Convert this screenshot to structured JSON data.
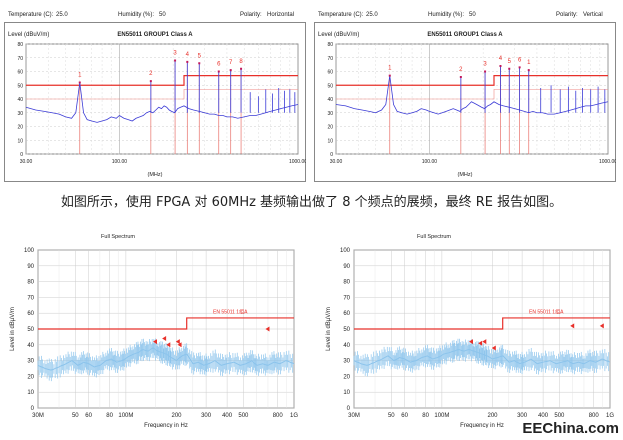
{
  "top_panels": [
    {
      "temperature_label": "Temperature (C):",
      "temperature_value": "25.0",
      "humidity_label": "Humidity (%):",
      "humidity_value": "50",
      "polarity_label": "Polarity:",
      "polarity_value": "Horizontal"
    },
    {
      "temperature_label": "Temperature (C):",
      "temperature_value": "25.0",
      "humidity_label": "Humidity (%):",
      "humidity_value": "50",
      "polarity_label": "Polarity:",
      "polarity_value": "Vertical"
    }
  ],
  "caption": "如图所示，使用 FPGA 对 60MHz 基频输出做了 8 个频点的展频，最终 RE 报告如图。",
  "watermark": "EEChina.com",
  "colors": {
    "limit": "#e8302a",
    "trace_top": "#3b3bd6",
    "trace_bottom": "#8cc4ec",
    "marker": "#e8302a"
  },
  "chart_data": [
    {
      "type": "line",
      "title": "EN55011 GROUP1 Class A",
      "ylabel": "Level (dBuV/m)",
      "xlabel": "(MHz)",
      "xscale": "log",
      "xlim": [
        30,
        1000
      ],
      "ylim": [
        0,
        80
      ],
      "grid": true,
      "x_ticks": [
        "30.00",
        "100.00",
        "1000.00"
      ],
      "y_ticks": [
        0,
        10,
        20,
        30,
        40,
        50,
        60,
        70,
        80
      ],
      "limit_line": {
        "x": [
          30,
          230,
          230,
          1000
        ],
        "y": [
          40,
          40,
          47,
          47
        ]
      },
      "limit_line_2": {
        "x": [
          30,
          230,
          230,
          1000
        ],
        "y": [
          50,
          50,
          57,
          57
        ]
      },
      "trace_x": [
        30,
        34,
        38,
        42,
        46,
        50,
        54,
        57,
        60,
        63,
        66,
        70,
        75,
        80,
        85,
        90,
        96,
        100,
        106,
        112,
        118,
        124,
        130,
        136,
        142,
        148,
        154,
        160,
        166,
        172,
        178,
        184,
        190,
        196,
        204,
        212,
        220,
        230,
        245,
        260,
        280,
        300,
        320,
        340,
        360,
        380,
        400,
        430,
        460,
        500,
        540,
        580,
        620,
        660,
        700,
        750,
        800,
        860,
        920,
        1000
      ],
      "trace_y": [
        34,
        32,
        31,
        30,
        29,
        27,
        26,
        30,
        52,
        30,
        25,
        24,
        23,
        24,
        25,
        27,
        26,
        28,
        26,
        25,
        24,
        26,
        27,
        28,
        30,
        31,
        30,
        32,
        34,
        33,
        35,
        34,
        32,
        31,
        30,
        33,
        34,
        35,
        33,
        32,
        31,
        30,
        29,
        29,
        28,
        28,
        27,
        27,
        26,
        27,
        28,
        28,
        29,
        30,
        31,
        32,
        33,
        34,
        35,
        36
      ],
      "markers": [
        {
          "label": "1",
          "x": 60,
          "y": 52
        },
        {
          "label": "2",
          "x": 150,
          "y": 53
        },
        {
          "label": "3",
          "x": 205,
          "y": 68
        },
        {
          "label": "4",
          "x": 240,
          "y": 67
        },
        {
          "label": "5",
          "x": 280,
          "y": 66
        },
        {
          "label": "6",
          "x": 360,
          "y": 60
        },
        {
          "label": "7",
          "x": 420,
          "y": 61
        },
        {
          "label": "8",
          "x": 480,
          "y": 62
        }
      ],
      "spikes": [
        {
          "x": 150,
          "y": 53
        },
        {
          "x": 205,
          "y": 68
        },
        {
          "x": 240,
          "y": 67
        },
        {
          "x": 280,
          "y": 66
        },
        {
          "x": 360,
          "y": 60
        },
        {
          "x": 420,
          "y": 61
        },
        {
          "x": 480,
          "y": 62
        },
        {
          "x": 540,
          "y": 45
        },
        {
          "x": 600,
          "y": 42
        },
        {
          "x": 660,
          "y": 47
        },
        {
          "x": 720,
          "y": 44
        },
        {
          "x": 780,
          "y": 48
        },
        {
          "x": 840,
          "y": 46
        },
        {
          "x": 900,
          "y": 47
        },
        {
          "x": 960,
          "y": 45
        }
      ]
    },
    {
      "type": "line",
      "title": "EN55011 GROUP1 Class A",
      "ylabel": "Level (dBuV/m)",
      "xlabel": "(MHz)",
      "xscale": "log",
      "xlim": [
        30,
        1000
      ],
      "ylim": [
        0,
        80
      ],
      "grid": true,
      "x_ticks": [
        "30.00",
        "100.00",
        "1000.00"
      ],
      "y_ticks": [
        0,
        10,
        20,
        30,
        40,
        50,
        60,
        70,
        80
      ],
      "limit_line": {
        "x": [
          30,
          230,
          230,
          1000
        ],
        "y": [
          40,
          40,
          47,
          47
        ]
      },
      "limit_line_2": {
        "x": [
          30,
          230,
          230,
          1000
        ],
        "y": [
          50,
          50,
          57,
          57
        ]
      },
      "trace_x": [
        30,
        34,
        38,
        42,
        46,
        50,
        54,
        57,
        60,
        63,
        66,
        70,
        75,
        80,
        85,
        90,
        96,
        100,
        106,
        112,
        118,
        124,
        130,
        136,
        142,
        148,
        154,
        160,
        166,
        172,
        178,
        184,
        190,
        196,
        204,
        212,
        220,
        230,
        245,
        260,
        280,
        300,
        320,
        340,
        360,
        380,
        400,
        430,
        460,
        500,
        540,
        580,
        620,
        660,
        700,
        750,
        800,
        860,
        920,
        1000
      ],
      "trace_y": [
        36,
        35,
        33,
        32,
        31,
        30,
        32,
        36,
        57,
        36,
        31,
        30,
        29,
        30,
        31,
        33,
        32,
        31,
        30,
        29,
        30,
        31,
        32,
        33,
        32,
        31,
        33,
        34,
        36,
        38,
        37,
        36,
        35,
        34,
        33,
        35,
        36,
        38,
        36,
        35,
        34,
        33,
        32,
        31,
        30,
        31,
        30,
        30,
        29,
        29,
        30,
        31,
        32,
        33,
        34,
        35,
        35,
        36,
        37,
        38
      ],
      "markers": [
        {
          "label": "1",
          "x": 60,
          "y": 57
        },
        {
          "label": "2",
          "x": 150,
          "y": 56
        },
        {
          "label": "3",
          "x": 205,
          "y": 60
        },
        {
          "label": "4",
          "x": 250,
          "y": 64
        },
        {
          "label": "5",
          "x": 280,
          "y": 62
        },
        {
          "label": "6",
          "x": 320,
          "y": 63
        },
        {
          "label": "1",
          "x": 360,
          "y": 61
        }
      ],
      "spikes": [
        {
          "x": 150,
          "y": 56
        },
        {
          "x": 205,
          "y": 60
        },
        {
          "x": 250,
          "y": 64
        },
        {
          "x": 280,
          "y": 62
        },
        {
          "x": 320,
          "y": 63
        },
        {
          "x": 360,
          "y": 61
        },
        {
          "x": 420,
          "y": 48
        },
        {
          "x": 480,
          "y": 50
        },
        {
          "x": 540,
          "y": 47
        },
        {
          "x": 600,
          "y": 49
        },
        {
          "x": 660,
          "y": 46
        },
        {
          "x": 720,
          "y": 48
        },
        {
          "x": 800,
          "y": 47
        },
        {
          "x": 880,
          "y": 49
        },
        {
          "x": 960,
          "y": 47
        }
      ]
    },
    {
      "type": "line",
      "title": "Full Spectrum",
      "ylabel": "Level in dBµV/m",
      "xlabel": "Frequency in Hz",
      "xscale": "log",
      "xlim": [
        30,
        1000
      ],
      "ylim": [
        0,
        100
      ],
      "grid": true,
      "x_ticks": [
        "30M",
        "50",
        "60",
        "80",
        "100M",
        "200",
        "300",
        "400",
        "500",
        "800",
        "1G"
      ],
      "x_tick_values": [
        30,
        50,
        60,
        80,
        100,
        200,
        300,
        400,
        500,
        800,
        1000
      ],
      "y_ticks": [
        0,
        10,
        20,
        30,
        40,
        50,
        60,
        70,
        80,
        90,
        100
      ],
      "limit_label": "EN 55011 1组A",
      "limit_line": {
        "x": [
          30,
          230,
          230,
          1000
        ],
        "y": [
          50,
          50,
          57,
          57
        ]
      },
      "trace_x": [
        30,
        33,
        36,
        40,
        44,
        48,
        52,
        56,
        60,
        65,
        70,
        76,
        82,
        88,
        95,
        102,
        110,
        118,
        126,
        135,
        145,
        155,
        165,
        175,
        185,
        200,
        215,
        230,
        250,
        270,
        290,
        310,
        340,
        370,
        400,
        440,
        480,
        520,
        560,
        600,
        650,
        700,
        760,
        820,
        900,
        1000
      ],
      "trace_y": [
        27,
        25,
        24,
        26,
        28,
        30,
        27,
        29,
        28,
        26,
        27,
        30,
        31,
        29,
        30,
        32,
        34,
        35,
        37,
        36,
        38,
        36,
        35,
        34,
        32,
        30,
        33,
        34,
        28,
        29,
        27,
        28,
        30,
        27,
        28,
        29,
        27,
        28,
        30,
        27,
        28,
        27,
        29,
        28,
        30,
        28
      ],
      "markers": [
        {
          "x": 150,
          "y": 42
        },
        {
          "x": 170,
          "y": 44
        },
        {
          "x": 180,
          "y": 40
        },
        {
          "x": 205,
          "y": 42
        },
        {
          "x": 210,
          "y": 40
        },
        {
          "x": 700,
          "y": 50
        }
      ]
    },
    {
      "type": "line",
      "title": "Full Spectrum",
      "ylabel": "Level in dBµV/m",
      "xlabel": "Frequency in Hz",
      "xscale": "log",
      "xlim": [
        30,
        1000
      ],
      "ylim": [
        0,
        100
      ],
      "grid": true,
      "x_ticks": [
        "30M",
        "50",
        "60",
        "80",
        "100M",
        "200",
        "300",
        "400",
        "500",
        "800",
        "1G"
      ],
      "x_tick_values": [
        30,
        50,
        60,
        80,
        100,
        200,
        300,
        400,
        500,
        800,
        1000
      ],
      "y_ticks": [
        0,
        10,
        20,
        30,
        40,
        50,
        60,
        70,
        80,
        90,
        100
      ],
      "limit_label": "EN 55011 1组A",
      "limit_line": {
        "x": [
          30,
          230,
          230,
          1000
        ],
        "y": [
          50,
          50,
          57,
          57
        ]
      },
      "trace_x": [
        30,
        33,
        36,
        40,
        44,
        48,
        52,
        56,
        60,
        65,
        70,
        76,
        82,
        88,
        95,
        102,
        110,
        118,
        126,
        135,
        145,
        155,
        165,
        175,
        185,
        200,
        215,
        230,
        250,
        270,
        290,
        310,
        340,
        370,
        400,
        440,
        480,
        520,
        560,
        600,
        650,
        700,
        760,
        820,
        900,
        1000
      ],
      "trace_y": [
        30,
        28,
        27,
        29,
        31,
        33,
        30,
        32,
        31,
        29,
        30,
        32,
        33,
        31,
        32,
        34,
        35,
        36,
        37,
        36,
        37,
        36,
        35,
        34,
        33,
        31,
        32,
        33,
        29,
        30,
        28,
        29,
        31,
        28,
        29,
        30,
        28,
        29,
        30,
        28,
        29,
        28,
        30,
        29,
        31,
        29
      ],
      "markers": [
        {
          "x": 150,
          "y": 42
        },
        {
          "x": 170,
          "y": 41
        },
        {
          "x": 180,
          "y": 42
        },
        {
          "x": 205,
          "y": 38
        },
        {
          "x": 600,
          "y": 52
        },
        {
          "x": 900,
          "y": 52
        }
      ]
    }
  ]
}
